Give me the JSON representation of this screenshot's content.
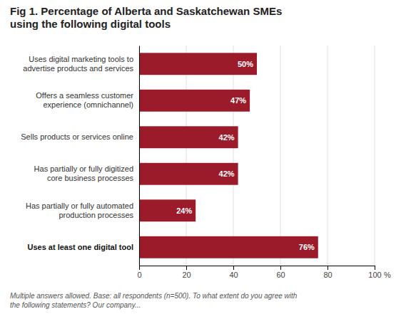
{
  "chart_data": {
    "type": "bar",
    "orientation": "horizontal",
    "title": "Fig 1. Percentage of Alberta and Saskatchewan SMEs\nusing the following digital tools",
    "categories": [
      "Uses at least one digital tool",
      "Has partially or fully automated\nproduction processes",
      "Has partially or fully digitized\ncore business processes",
      "Sells products or services online",
      "Offers a seamless customer\nexperience (omnichannel)",
      "Uses digital marketing tools to\nadvertise products and services"
    ],
    "values": [
      76,
      24,
      42,
      42,
      47,
      50
    ],
    "value_labels": [
      "76%",
      "24%",
      "42%",
      "42%",
      "47%",
      "50%"
    ],
    "data_labels": true,
    "color": "#9b1b2a",
    "xlim": [
      0,
      100
    ],
    "xticks": [
      0,
      20,
      40,
      60,
      80,
      100
    ],
    "xlabel": "%",
    "footnote": "Multiple answers allowed. Base: all respondents (n=500). To what extent do you agree with\nthe following statements? Our company...",
    "grid": true
  }
}
